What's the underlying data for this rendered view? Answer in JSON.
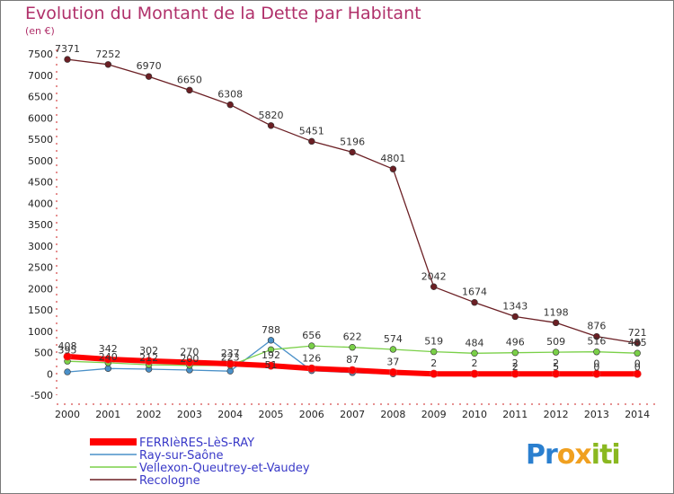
{
  "chart_data": {
    "type": "line",
    "title": "Evolution du Montant de la Dette par Habitant",
    "subtitle": "(en €)",
    "xlabel": "",
    "ylabel": "",
    "x": [
      "2000",
      "2001",
      "2002",
      "2003",
      "2004",
      "2005",
      "2006",
      "2007",
      "2008",
      "2009",
      "2010",
      "2011",
      "2012",
      "2013",
      "2014"
    ],
    "ylim": [
      -500,
      7500
    ],
    "yticks": [
      -500,
      0,
      500,
      1000,
      1500,
      2000,
      2500,
      3000,
      3500,
      4000,
      4500,
      5000,
      5500,
      6000,
      6500,
      7000,
      7500
    ],
    "grid": false,
    "legend_position": "bottom-left",
    "series": [
      {
        "name": "FERRIèRES-LèS-RAY",
        "color": "#ff0000",
        "values": [
          408,
          342,
          302,
          270,
          237,
          192,
          126,
          87,
          37,
          2,
          2,
          2,
          2,
          0,
          0
        ],
        "labels": [
          "408",
          "342",
          "302",
          "270",
          "237",
          "192",
          "126",
          "87",
          "37",
          "2",
          "2",
          "2",
          "2",
          "0",
          "0"
        ]
      },
      {
        "name": "Ray-sur-Saône",
        "color": "#4a90c8",
        "values": [
          45,
          125,
          110,
          90,
          65,
          788,
          75,
          30,
          0,
          0,
          0,
          0,
          0,
          0,
          0
        ],
        "labels": [
          "",
          "",
          "",
          "",
          "",
          "788",
          "",
          "",
          "",
          "",
          "",
          "",
          "",
          "",
          ""
        ]
      },
      {
        "name": "Vellexon-Queutrey-et-Vaudey",
        "color": "#7ad048",
        "values": [
          295,
          259,
          213,
          200,
          200,
          567,
          656,
          622,
          574,
          519,
          484,
          496,
          509,
          516,
          485
        ],
        "labels": [
          "",
          "",
          "",
          "",
          "",
          "",
          "656",
          "622",
          "574",
          "519",
          "484",
          "496",
          "509",
          "516",
          "485"
        ]
      },
      {
        "name": "Recologne",
        "color": "#6b1f24",
        "values": [
          7371,
          7252,
          6970,
          6650,
          6308,
          5820,
          5451,
          5196,
          4801,
          2042,
          1674,
          1343,
          1198,
          876,
          721
        ],
        "labels": [
          "7371",
          "7252",
          "6970",
          "6650",
          "6308",
          "5820",
          "5451",
          "5196",
          "4801",
          "2042",
          "1674",
          "1343",
          "1198",
          "876",
          "721"
        ]
      }
    ],
    "overlap_labels": [
      "395",
      "240",
      "212",
      "200",
      "223",
      "51",
      "2",
      "5",
      "0",
      "0"
    ]
  },
  "logo": {
    "text": "Proxiti",
    "letters": [
      "P",
      "r",
      "o",
      "x",
      "i",
      "t",
      "i"
    ],
    "colors": [
      "#2a7fcf",
      "#2a7fcf",
      "#f0a020",
      "#f0a020",
      "#8ab820",
      "#8ab820",
      "#8ab820"
    ]
  }
}
